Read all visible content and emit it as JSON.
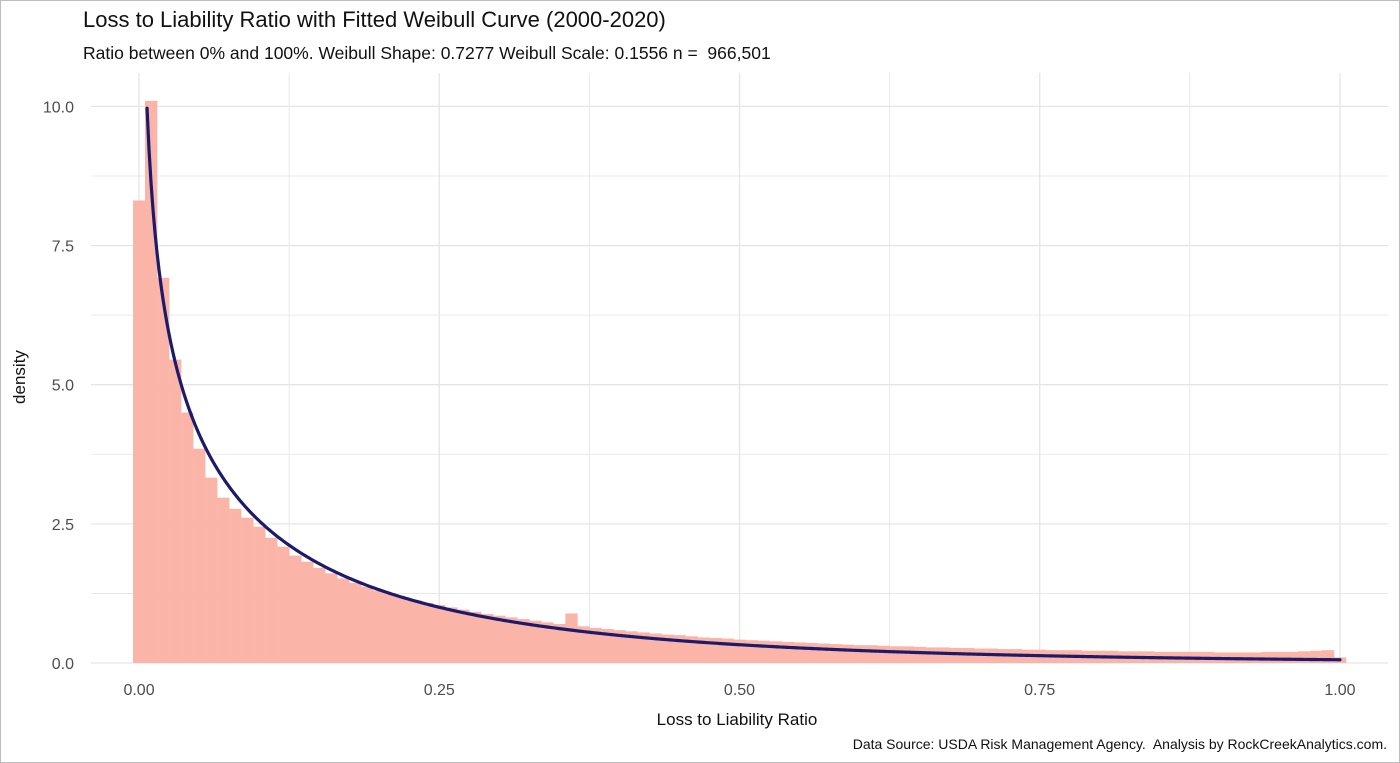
{
  "title": "Loss to Liability Ratio with Fitted Weibull Curve (2000-2020)",
  "subtitle": "Ratio between 0% and 100%. Weibull Shape: 0.7277 Weibull Scale: 0.1556 n =  966,501",
  "caption": "Data Source: USDA Risk Management Agency.  Analysis by RockCreekAnalytics.com.",
  "colors": {
    "bars": "#fbb4a8",
    "curve": "#1c1a6b",
    "grid": "#e5e5e5"
  },
  "chart_data": {
    "type": "bar",
    "xlabel": "Loss to Liability Ratio",
    "ylabel": "density",
    "xlim": [
      -0.04,
      1.04
    ],
    "ylim": [
      0,
      10.6
    ],
    "x_ticks": [
      0.0,
      0.25,
      0.5,
      0.75,
      1.0
    ],
    "x_tick_labels": [
      "0.00",
      "0.25",
      "0.50",
      "0.75",
      "1.00"
    ],
    "y_ticks": [
      0.0,
      2.5,
      5.0,
      7.5,
      10.0
    ],
    "y_tick_labels": [
      "0.0",
      "2.5",
      "5.0",
      "7.5",
      "10.0"
    ],
    "grid": true,
    "histogram": {
      "name": "histogram",
      "bin_start": -0.005,
      "bin_width": 0.01,
      "values": [
        8.31,
        10.1,
        6.92,
        5.45,
        4.5,
        3.85,
        3.33,
        2.97,
        2.77,
        2.61,
        2.45,
        2.25,
        2.09,
        1.93,
        1.82,
        1.71,
        1.61,
        1.52,
        1.44,
        1.37,
        1.3,
        1.24,
        1.18,
        1.13,
        1.08,
        1.04,
        1.0,
        0.96,
        0.92,
        0.88,
        0.85,
        0.82,
        0.79,
        0.76,
        0.73,
        0.7,
        0.89,
        0.66,
        0.63,
        0.61,
        0.59,
        0.57,
        0.55,
        0.53,
        0.51,
        0.5,
        0.48,
        0.46,
        0.45,
        0.44,
        0.42,
        0.41,
        0.4,
        0.39,
        0.38,
        0.37,
        0.36,
        0.35,
        0.34,
        0.33,
        0.32,
        0.32,
        0.31,
        0.3,
        0.3,
        0.29,
        0.28,
        0.28,
        0.27,
        0.27,
        0.26,
        0.26,
        0.25,
        0.25,
        0.24,
        0.24,
        0.23,
        0.23,
        0.23,
        0.22,
        0.22,
        0.22,
        0.21,
        0.21,
        0.21,
        0.2,
        0.2,
        0.2,
        0.2,
        0.2,
        0.19,
        0.19,
        0.19,
        0.19,
        0.2,
        0.2,
        0.2,
        0.21,
        0.22,
        0.23,
        0.1
      ]
    },
    "fitted_curve": {
      "name": "Weibull fit",
      "distribution": "weibull",
      "shape": 0.7277,
      "scale": 0.1556,
      "x_range": [
        0.0,
        1.0
      ]
    }
  }
}
